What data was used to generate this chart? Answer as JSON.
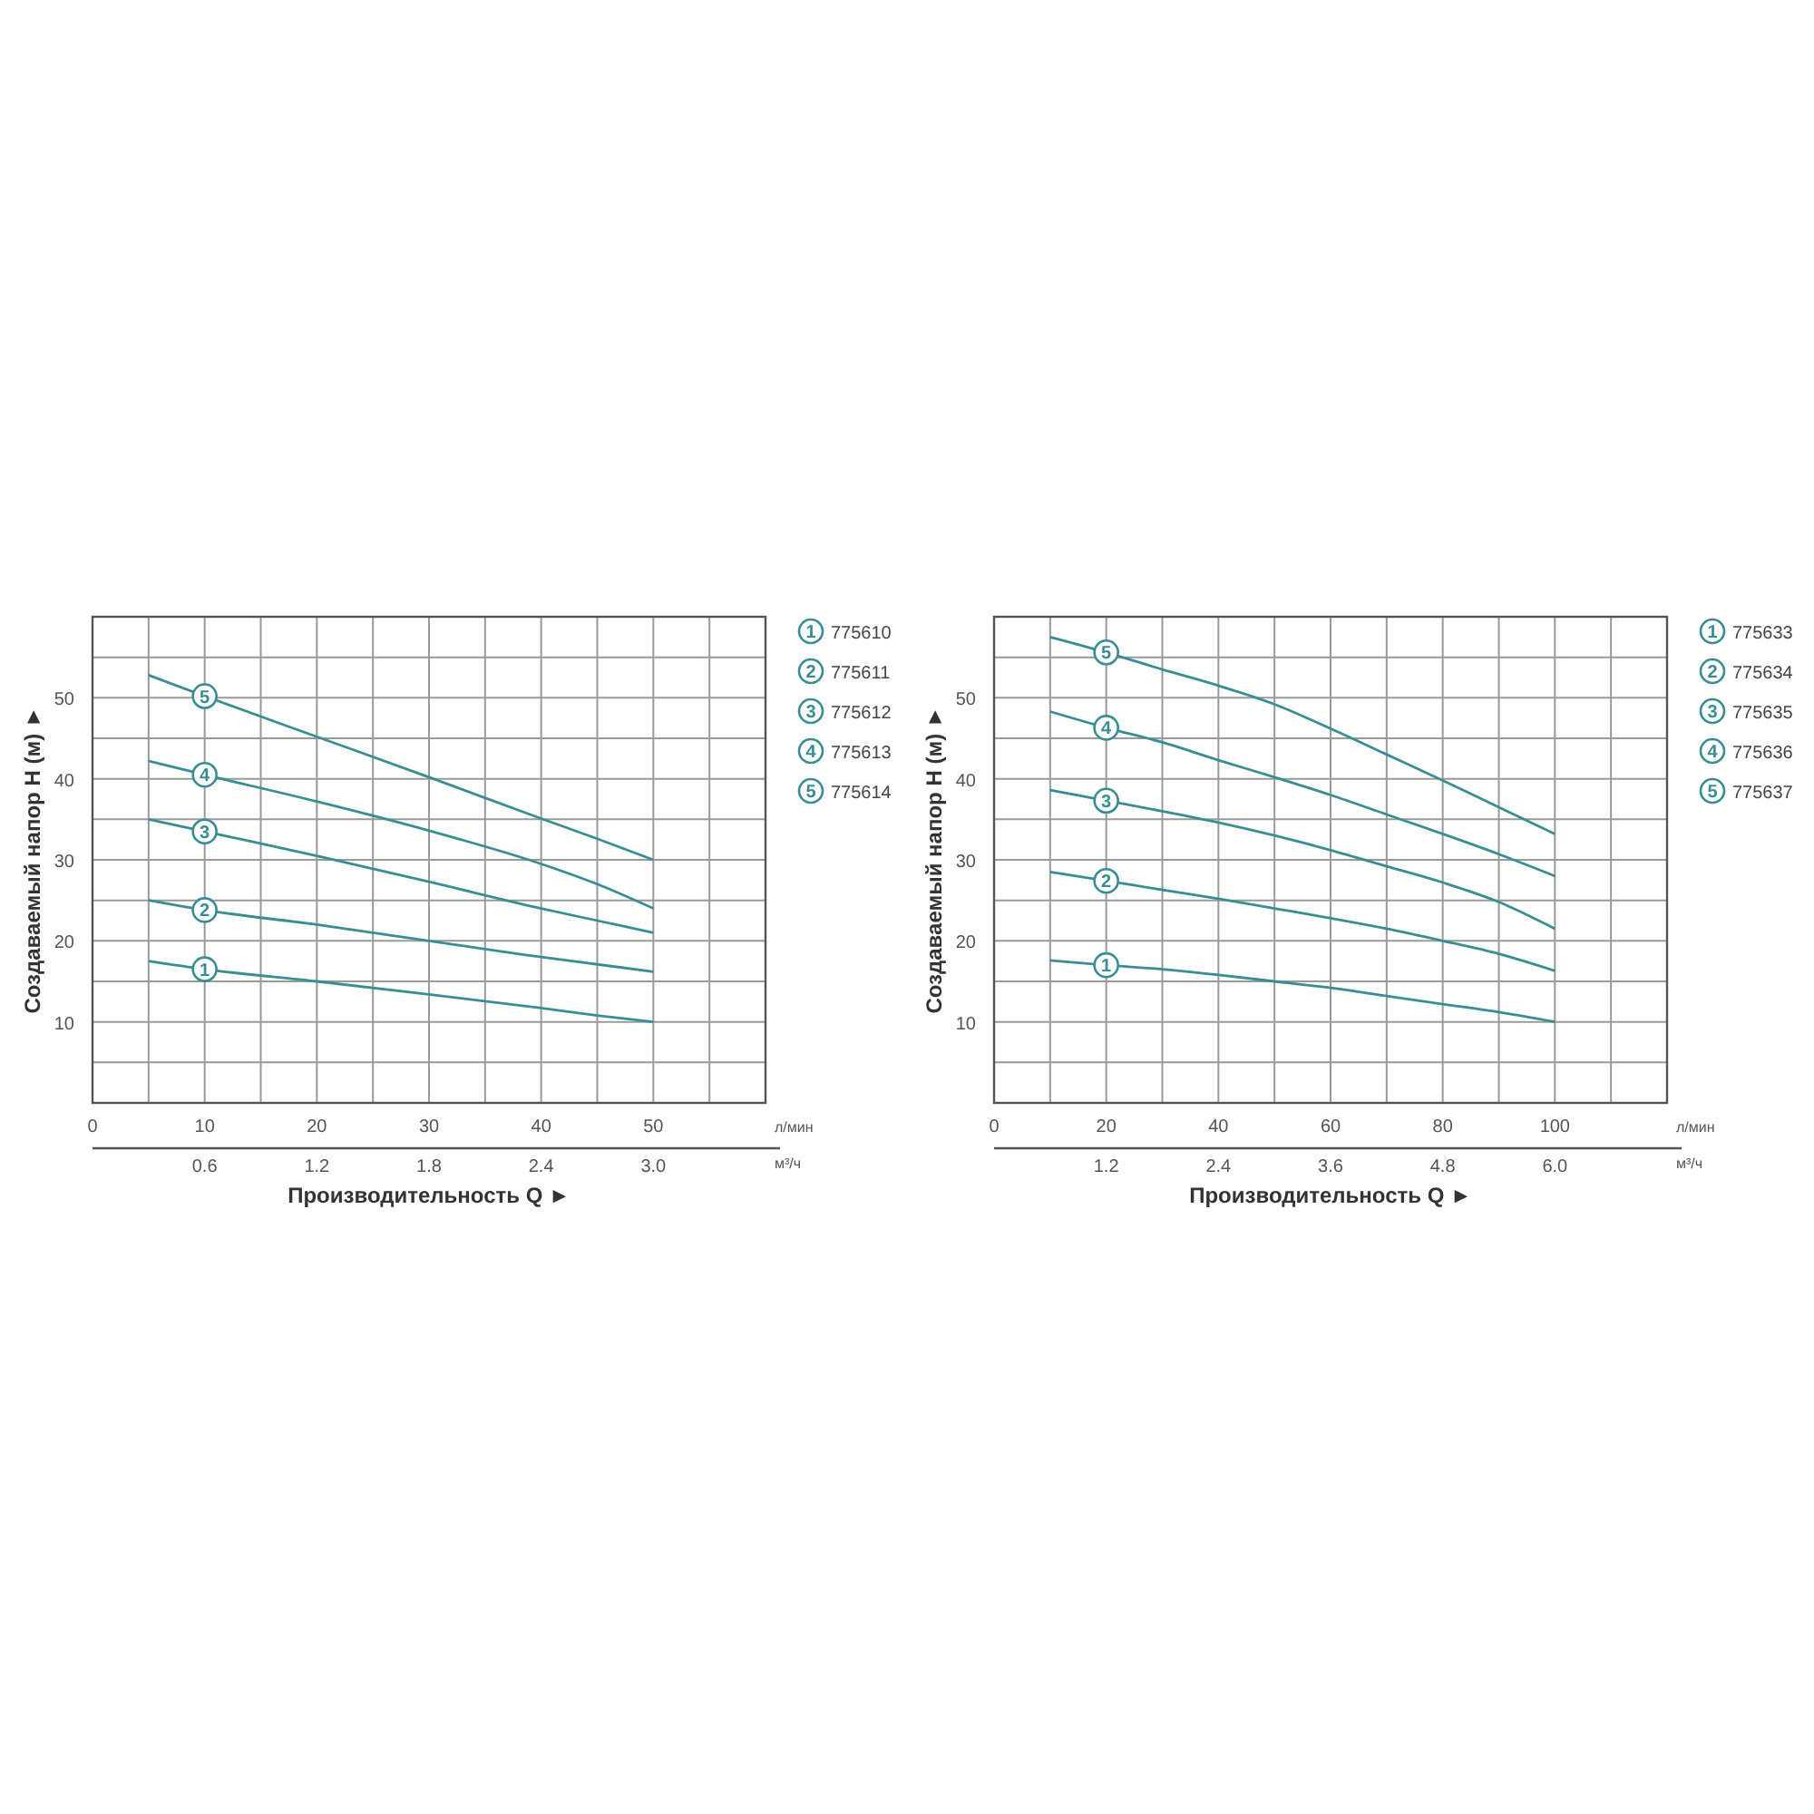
{
  "chart_data": [
    {
      "type": "line",
      "ylabel": "Создаваемый напор H (м) ►",
      "xlabel": "Производительность Q ►",
      "legend": "right",
      "grid": true,
      "marker": "none",
      "line_style": "solid",
      "xlim": [
        0,
        60
      ],
      "xticks": [
        0,
        {
          "value": 5,
          "label": null
        },
        10,
        {
          "value": 15,
          "label": null
        },
        20,
        {
          "value": 25,
          "label": null
        },
        30,
        {
          "value": 35,
          "label": null
        },
        40,
        {
          "value": 45,
          "label": null
        },
        50,
        {
          "value": 55,
          "label": null
        }
      ],
      "x2lim": [
        0,
        3.6
      ],
      "x2ticks": [
        0.6,
        1.2,
        1.8,
        2.4,
        {
          "value": 3,
          "label": "3.0"
        }
      ],
      "ylim": [
        0,
        60
      ],
      "yticks": [
        {
          "value": 5,
          "label": null
        },
        10,
        {
          "value": 15,
          "label": null
        },
        20,
        {
          "value": 25,
          "label": null
        },
        30,
        {
          "value": 35,
          "label": null
        },
        40,
        {
          "value": 45,
          "label": null
        },
        50,
        {
          "value": 55,
          "label": null
        }
      ],
      "x": [
        5,
        10,
        20,
        30,
        40,
        45,
        50
      ],
      "series": [
        {
          "name": "775610",
          "color": "#3a8e93",
          "values": [
            17.5,
            16.5,
            15,
            13.4,
            11.7,
            10.8,
            10
          ]
        },
        {
          "name": "775611",
          "color": "#3a8e93",
          "values": [
            25,
            23.8,
            22,
            20,
            18,
            17.1,
            16.2
          ]
        },
        {
          "name": "775612",
          "color": "#3a8e93",
          "values": [
            35,
            33.5,
            30.5,
            27.3,
            24,
            22.5,
            21
          ]
        },
        {
          "name": "775613",
          "color": "#3a8e93",
          "values": [
            42.2,
            40.5,
            37.2,
            33.6,
            29.5,
            27,
            24
          ]
        },
        {
          "name": "775614",
          "color": "#3a8e93",
          "values": [
            52.8,
            50.2,
            45.2,
            40.2,
            35.1,
            32.6,
            30
          ]
        }
      ],
      "annotations": [
        "1",
        "2",
        "3",
        "4",
        "5",
        "л/мин",
        "м³/ч"
      ]
    },
    {
      "type": "line",
      "ylabel": "Создаваемый напор H (м) ►",
      "xlabel": "Производительность Q ►",
      "legend": "right",
      "grid": true,
      "marker": "none",
      "line_style": "solid",
      "xlim": [
        0,
        120
      ],
      "xticks": [
        0,
        {
          "value": 10,
          "label": null
        },
        20,
        {
          "value": 30,
          "label": null
        },
        40,
        {
          "value": 50,
          "label": null
        },
        60,
        {
          "value": 70,
          "label": null
        },
        80,
        {
          "value": 90,
          "label": null
        },
        100,
        {
          "value": 110,
          "label": null
        }
      ],
      "x2lim": [
        0,
        7.2
      ],
      "x2ticks": [
        1.2,
        2.4,
        3.6,
        4.8,
        {
          "value": 6,
          "label": "6.0"
        }
      ],
      "ylim": [
        0,
        60
      ],
      "yticks": [
        {
          "value": 5,
          "label": null
        },
        10,
        {
          "value": 15,
          "label": null
        },
        20,
        {
          "value": 25,
          "label": null
        },
        30,
        {
          "value": 35,
          "label": null
        },
        40,
        {
          "value": 45,
          "label": null
        },
        50,
        {
          "value": 55,
          "label": null
        }
      ],
      "x": [
        10,
        20,
        30,
        40,
        50,
        60,
        70,
        80,
        90,
        100
      ],
      "series": [
        {
          "name": "775633",
          "color": "#3a8e93",
          "values": [
            17.6,
            17,
            16.5,
            15.8,
            15,
            14.2,
            13.2,
            12.2,
            11.2,
            10
          ]
        },
        {
          "name": "775634",
          "color": "#3a8e93",
          "values": [
            28.5,
            27.4,
            26.3,
            25.2,
            24,
            22.8,
            21.5,
            20,
            18.4,
            16.3
          ]
        },
        {
          "name": "775635",
          "color": "#3a8e93",
          "values": [
            38.6,
            37.3,
            36,
            34.6,
            33,
            31.2,
            29.2,
            27.2,
            24.8,
            21.5
          ]
        },
        {
          "name": "775636",
          "color": "#3a8e93",
          "values": [
            48.3,
            46.3,
            44.5,
            42.3,
            40.2,
            38,
            35.6,
            33.2,
            30.7,
            28
          ]
        },
        {
          "name": "775637",
          "color": "#3a8e93",
          "values": [
            57.5,
            55.6,
            53.5,
            51.5,
            49.2,
            46.2,
            43,
            39.8,
            36.5,
            33.2
          ]
        }
      ],
      "annotations": [
        "1",
        "2",
        "3",
        "4",
        "5",
        "л/мин",
        "м³/ч"
      ]
    }
  ]
}
